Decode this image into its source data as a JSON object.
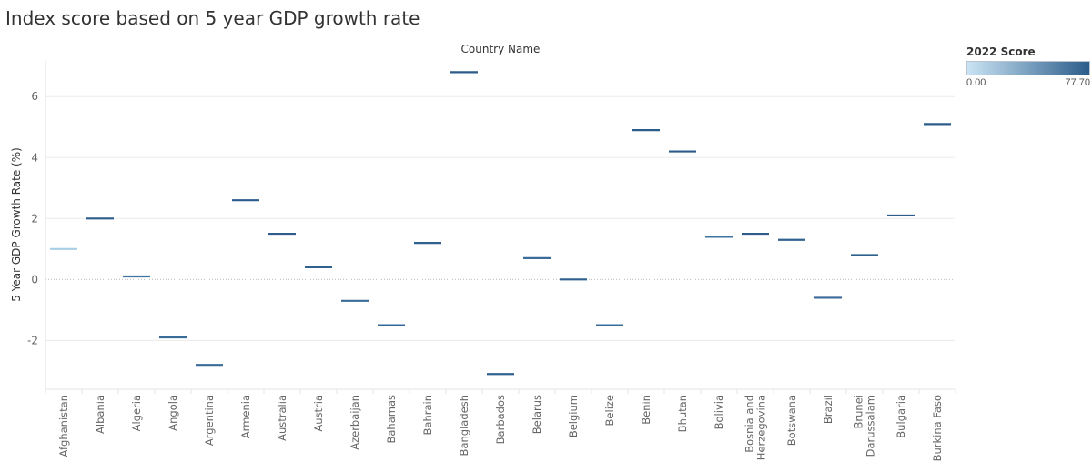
{
  "title": "Index score based on 5 year GDP growth rate",
  "legend": {
    "title": "2022 Score",
    "min_label": "0.00",
    "max_label": "77.70",
    "color_low": "#c9e4f4",
    "color_high": "#2b5c8a"
  },
  "chart_data": {
    "type": "scatter",
    "mark": "horizontal dash",
    "column_header": "Country Name",
    "ylabel": "5 Year GDP Growth Rate (%)",
    "ylim": [
      -3.6,
      7.2
    ],
    "yticks": [
      "6",
      "4",
      "2",
      "0",
      "-2"
    ],
    "yticks_values": [
      6,
      4,
      2,
      0,
      -2
    ],
    "grid": true,
    "zero_line": "dotted",
    "categories": [
      [
        "Afghanistan"
      ],
      [
        "Albania"
      ],
      [
        "Algeria"
      ],
      [
        "Angola"
      ],
      [
        "Argentina"
      ],
      [
        "Armenia"
      ],
      [
        "Australia"
      ],
      [
        "Austria"
      ],
      [
        "Azerbaijan"
      ],
      [
        "Bahamas"
      ],
      [
        "Bahrain"
      ],
      [
        "Bangladesh"
      ],
      [
        "Barbados"
      ],
      [
        "Belarus"
      ],
      [
        "Belgium"
      ],
      [
        "Belize"
      ],
      [
        "Benin"
      ],
      [
        "Bhutan"
      ],
      [
        "Bolivia"
      ],
      [
        "Bosnia and",
        "Herzegovina"
      ],
      [
        "Botswana"
      ],
      [
        "Brazil"
      ],
      [
        "Brunei",
        "Darussalam"
      ],
      [
        "Bulgaria"
      ],
      [
        "Burkina Faso"
      ]
    ],
    "values": [
      1.0,
      2.0,
      0.1,
      -1.9,
      -2.8,
      2.6,
      1.5,
      0.4,
      -0.7,
      -1.5,
      1.2,
      6.8,
      -3.1,
      0.7,
      0.0,
      -1.5,
      4.9,
      4.2,
      1.4,
      1.5,
      1.3,
      -0.6,
      0.8,
      2.1,
      5.1
    ],
    "colors": [
      "#a9cfe6",
      "#2c5d8a",
      "#3f74a2",
      "#3a6c9a",
      "#3a6b99",
      "#2c5d8a",
      "#2d5e8b",
      "#2f618e",
      "#3a6b99",
      "#35679a",
      "#2f618e",
      "#2b5c8a",
      "#30628f",
      "#3b6d9b",
      "#2f608d",
      "#3a6c9a",
      "#2c5d8a",
      "#2c5d8a",
      "#3f74a2",
      "#2d5e8b",
      "#30628f",
      "#3a6b99",
      "#2f618e",
      "#2c5d8a",
      "#2c5d8a"
    ]
  }
}
